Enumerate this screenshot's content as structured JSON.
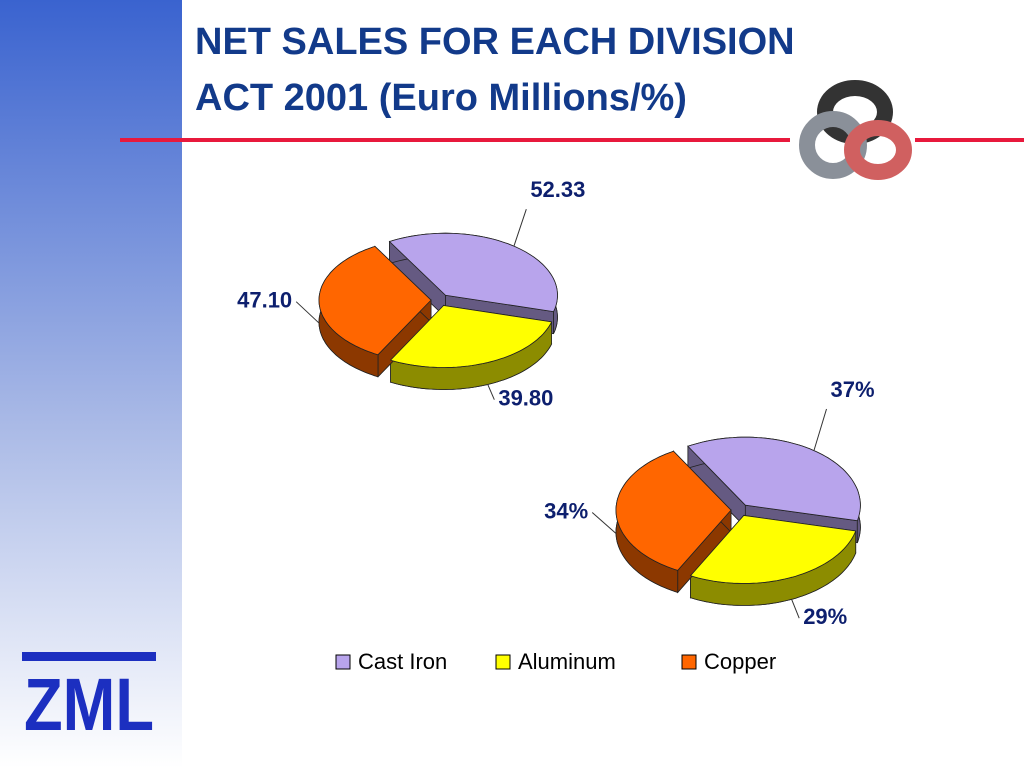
{
  "slide": {
    "title_lines": [
      "NET SALES FOR EACH DIVISION",
      "ACT 2001 (Euro Millions/%)"
    ],
    "logo": "ZML"
  },
  "chart_data": [
    {
      "type": "pie",
      "categories": [
        "Cast Iron",
        "Aluminum",
        "Copper"
      ],
      "values": [
        52.33,
        39.8,
        47.1
      ],
      "value_labels": [
        "52.33",
        "39.80",
        "47.10"
      ],
      "colors": [
        "#b8a4ec",
        "#ffff00",
        "#ff6600"
      ],
      "legend": true
    },
    {
      "type": "pie",
      "categories": [
        "Cast Iron",
        "Aluminum",
        "Copper"
      ],
      "values": [
        37,
        29,
        34
      ],
      "value_labels": [
        "37%",
        "29%",
        "34%"
      ],
      "colors": [
        "#b8a4ec",
        "#ffff00",
        "#ff6600"
      ],
      "legend": false
    }
  ]
}
